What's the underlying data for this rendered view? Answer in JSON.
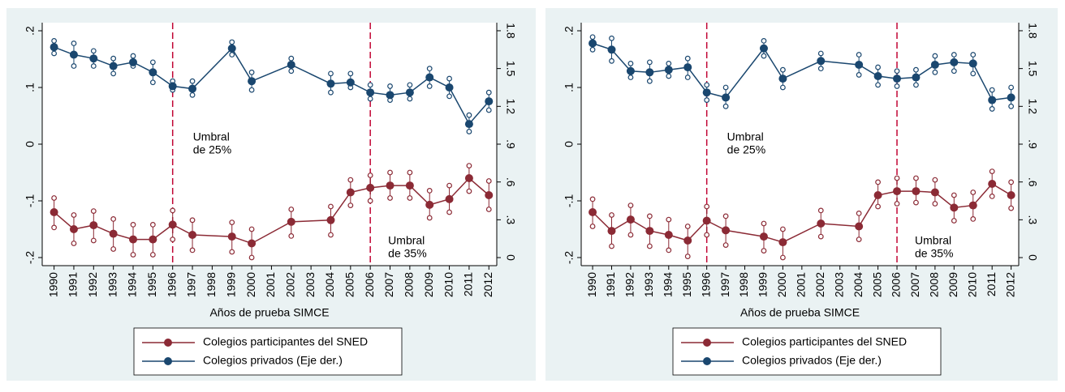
{
  "chart_data": [
    {
      "type": "line",
      "x_label": "Años de prueba SIMCE",
      "legend": "bottom",
      "x": [
        1990,
        1991,
        1992,
        1993,
        1994,
        1995,
        1996,
        1997,
        1999,
        2000,
        2002,
        2004,
        2005,
        2006,
        2007,
        2008,
        2009,
        2010,
        2011,
        2012
      ],
      "xlim": [
        1989.4,
        2012.4
      ],
      "xticks": [
        1990,
        1991,
        1992,
        1993,
        1994,
        1995,
        1996,
        1997,
        1998,
        1999,
        2000,
        2001,
        2002,
        2003,
        2004,
        2005,
        2006,
        2007,
        2008,
        2009,
        2010,
        2011,
        2012
      ],
      "ylim": [
        -0.2143,
        0.2143
      ],
      "yticks": [
        {
          "value": 0.2,
          "label": ".2"
        },
        {
          "value": 0.1,
          "label": ".1"
        },
        0,
        {
          "value": -0.1,
          "label": "-.1"
        },
        {
          "value": -0.2,
          "label": "-.2"
        }
      ],
      "y2lim": [
        -0.064,
        1.864
      ],
      "y2ticks": [
        1.8,
        1.5,
        1.2,
        {
          "value": 0.9,
          "label": ".9"
        },
        {
          "value": 0.6,
          "label": ".6"
        },
        {
          "value": 0.3,
          "label": ".3"
        },
        0
      ],
      "vlines": [
        {
          "x": 1996,
          "label": [
            "Umbral",
            "de 25%"
          ]
        },
        {
          "x": 2006,
          "label": [
            "Umbral",
            "de 35%"
          ]
        }
      ],
      "vline_color": "#c10534",
      "series": [
        {
          "name": "Colegios participantes del SNED",
          "color": "#8b2a35",
          "axis": "y",
          "values": [
            -0.12,
            -0.15,
            -0.143,
            -0.158,
            -0.168,
            -0.168,
            -0.142,
            -0.16,
            -0.163,
            -0.175,
            -0.137,
            -0.134,
            -0.085,
            -0.077,
            -0.073,
            -0.073,
            -0.107,
            -0.097,
            -0.06,
            -0.09
          ],
          "lower": [
            -0.147,
            -0.175,
            -0.17,
            -0.185,
            -0.195,
            -0.195,
            -0.168,
            -0.187,
            -0.19,
            -0.2,
            -0.162,
            -0.16,
            -0.108,
            -0.1,
            -0.095,
            -0.095,
            -0.13,
            -0.12,
            -0.083,
            -0.115
          ],
          "upper": [
            -0.095,
            -0.125,
            -0.118,
            -0.132,
            -0.142,
            -0.142,
            -0.117,
            -0.134,
            -0.138,
            -0.15,
            -0.115,
            -0.11,
            -0.063,
            -0.055,
            -0.05,
            -0.05,
            -0.082,
            -0.073,
            -0.038,
            -0.065
          ]
        },
        {
          "name": "Colegios privados (Eje der.)",
          "color": "#1a476f",
          "axis": "y2",
          "values": [
            1.67,
            1.61,
            1.58,
            1.52,
            1.55,
            1.47,
            1.36,
            1.34,
            1.66,
            1.4,
            1.53,
            1.38,
            1.39,
            1.31,
            1.29,
            1.31,
            1.43,
            1.35,
            1.06,
            1.24
          ],
          "lower": [
            1.62,
            1.52,
            1.52,
            1.46,
            1.52,
            1.39,
            1.33,
            1.29,
            1.61,
            1.33,
            1.48,
            1.31,
            1.35,
            1.26,
            1.25,
            1.26,
            1.36,
            1.28,
            1.0,
            1.17
          ],
          "upper": [
            1.72,
            1.7,
            1.64,
            1.58,
            1.6,
            1.55,
            1.4,
            1.4,
            1.71,
            1.47,
            1.58,
            1.46,
            1.46,
            1.37,
            1.36,
            1.37,
            1.5,
            1.42,
            1.13,
            1.31
          ]
        }
      ]
    },
    {
      "type": "line",
      "x_label": "Años de prueba SIMCE",
      "legend": "bottom",
      "x": [
        1990,
        1991,
        1992,
        1993,
        1994,
        1995,
        1996,
        1997,
        1999,
        2000,
        2002,
        2004,
        2005,
        2006,
        2007,
        2008,
        2009,
        2010,
        2011,
        2012
      ],
      "xlim": [
        1989.4,
        2012.4
      ],
      "xticks": [
        1990,
        1991,
        1992,
        1993,
        1994,
        1995,
        1996,
        1997,
        1998,
        1999,
        2000,
        2001,
        2002,
        2003,
        2004,
        2005,
        2006,
        2007,
        2008,
        2009,
        2010,
        2011,
        2012
      ],
      "ylim": [
        -0.2143,
        0.2143
      ],
      "yticks": [
        {
          "value": 0.2,
          "label": ".2"
        },
        {
          "value": 0.1,
          "label": ".1"
        },
        0,
        {
          "value": -0.1,
          "label": "-.1"
        },
        {
          "value": -0.2,
          "label": "-.2"
        }
      ],
      "y2lim": [
        -0.064,
        1.864
      ],
      "y2ticks": [
        1.8,
        1.5,
        1.2,
        {
          "value": 0.9,
          "label": ".9"
        },
        {
          "value": 0.6,
          "label": ".6"
        },
        {
          "value": 0.3,
          "label": ".3"
        },
        0
      ],
      "vlines": [
        {
          "x": 1996,
          "label": [
            "Umbral",
            "de 25%"
          ]
        },
        {
          "x": 2006,
          "label": [
            "Umbral",
            "de 35%"
          ]
        }
      ],
      "vline_color": "#c10534",
      "series": [
        {
          "name": "Colegios participantes del SNED",
          "color": "#8b2a35",
          "axis": "y",
          "values": [
            -0.12,
            -0.153,
            -0.133,
            -0.153,
            -0.16,
            -0.17,
            -0.135,
            -0.152,
            -0.163,
            -0.173,
            -0.14,
            -0.145,
            -0.09,
            -0.083,
            -0.083,
            -0.085,
            -0.112,
            -0.108,
            -0.07,
            -0.09
          ],
          "lower": [
            -0.145,
            -0.18,
            -0.16,
            -0.18,
            -0.187,
            -0.198,
            -0.16,
            -0.178,
            -0.188,
            -0.2,
            -0.163,
            -0.168,
            -0.11,
            -0.105,
            -0.103,
            -0.105,
            -0.135,
            -0.132,
            -0.092,
            -0.113
          ],
          "upper": [
            -0.097,
            -0.125,
            -0.108,
            -0.127,
            -0.133,
            -0.145,
            -0.11,
            -0.127,
            -0.14,
            -0.15,
            -0.117,
            -0.122,
            -0.067,
            -0.06,
            -0.06,
            -0.063,
            -0.09,
            -0.085,
            -0.048,
            -0.067
          ]
        },
        {
          "name": "Colegios privados (Eje der.)",
          "color": "#1a476f",
          "axis": "y2",
          "values": [
            1.7,
            1.65,
            1.48,
            1.47,
            1.49,
            1.51,
            1.31,
            1.27,
            1.66,
            1.42,
            1.56,
            1.53,
            1.44,
            1.42,
            1.43,
            1.53,
            1.55,
            1.54,
            1.25,
            1.27
          ],
          "lower": [
            1.65,
            1.56,
            1.43,
            1.4,
            1.44,
            1.43,
            1.25,
            1.2,
            1.6,
            1.35,
            1.5,
            1.45,
            1.37,
            1.36,
            1.37,
            1.47,
            1.48,
            1.46,
            1.18,
            1.2
          ],
          "upper": [
            1.75,
            1.74,
            1.54,
            1.55,
            1.54,
            1.58,
            1.37,
            1.35,
            1.72,
            1.49,
            1.62,
            1.61,
            1.51,
            1.48,
            1.49,
            1.6,
            1.61,
            1.61,
            1.33,
            1.35
          ]
        }
      ]
    }
  ]
}
